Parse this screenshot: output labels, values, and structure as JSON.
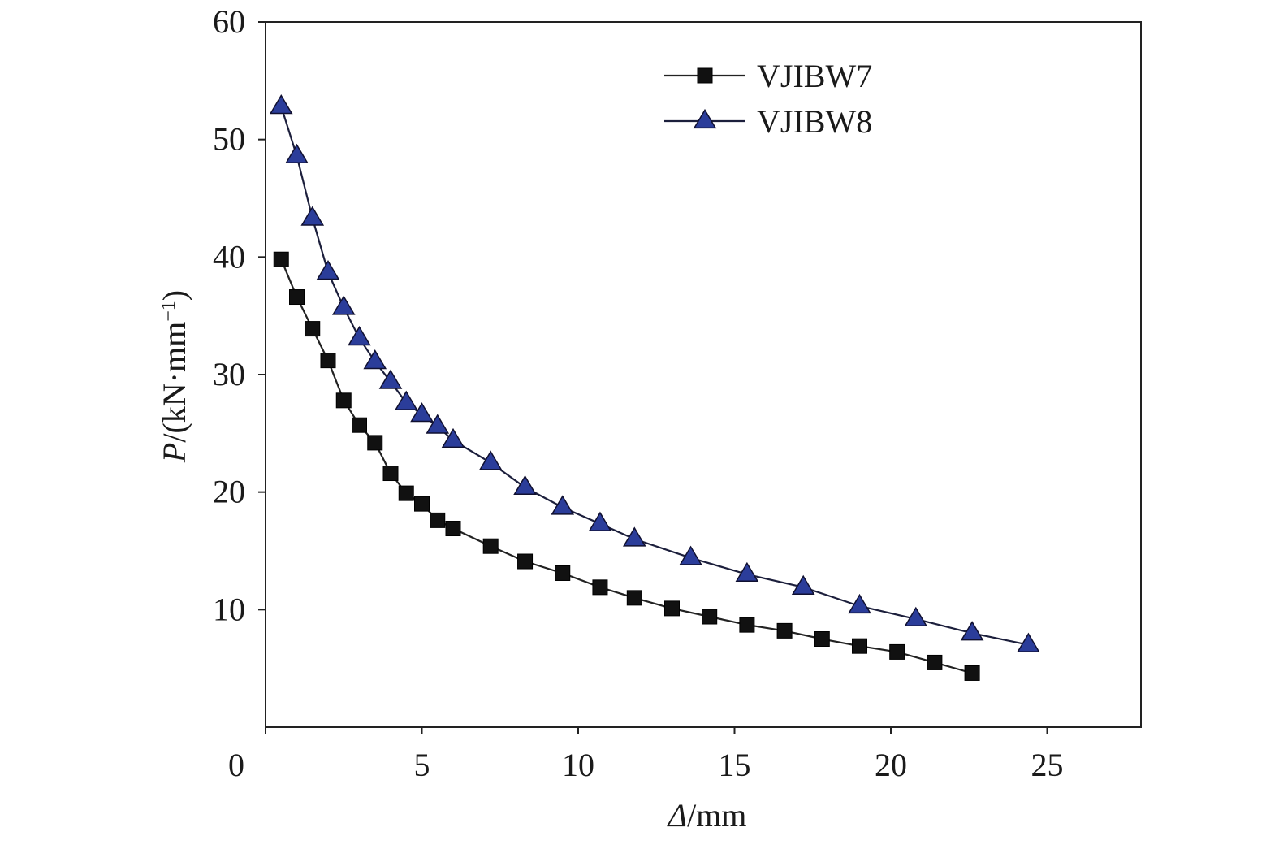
{
  "chart_data": {
    "type": "line",
    "xlabel_symbol": "Δ",
    "xlabel_unit": "/mm",
    "ylabel_symbol": "P",
    "ylabel_unit": "/(kN·mm",
    "ylabel_exponent": "−1",
    "ylabel_close": ")",
    "xlim": [
      0,
      28
    ],
    "ylim": [
      0,
      60
    ],
    "x_ticks": [
      0,
      5,
      10,
      15,
      20,
      25
    ],
    "y_ticks": [
      10,
      20,
      30,
      40,
      50,
      60
    ],
    "legend_position": "top-right",
    "series": [
      {
        "name": "VJIBW7",
        "marker": "square",
        "color": "#111111",
        "line_color": "#222222",
        "points": [
          [
            0.5,
            39.8
          ],
          [
            1.0,
            36.6
          ],
          [
            1.5,
            33.9
          ],
          [
            2.0,
            31.2
          ],
          [
            2.5,
            27.8
          ],
          [
            3.0,
            25.7
          ],
          [
            3.5,
            24.2
          ],
          [
            4.0,
            21.6
          ],
          [
            4.5,
            19.9
          ],
          [
            5.0,
            19.0
          ],
          [
            5.5,
            17.6
          ],
          [
            6.0,
            16.9
          ],
          [
            7.2,
            15.4
          ],
          [
            8.3,
            14.1
          ],
          [
            9.5,
            13.1
          ],
          [
            10.7,
            11.9
          ],
          [
            11.8,
            11.0
          ],
          [
            13.0,
            10.1
          ],
          [
            14.2,
            9.4
          ],
          [
            15.4,
            8.7
          ],
          [
            16.6,
            8.2
          ],
          [
            17.8,
            7.5
          ],
          [
            19.0,
            6.9
          ],
          [
            20.2,
            6.4
          ],
          [
            21.4,
            5.5
          ],
          [
            22.6,
            4.6
          ]
        ]
      },
      {
        "name": "VJIBW8",
        "marker": "triangle",
        "color": "#2b3d9a",
        "line_color": "#1c1f3c",
        "points": [
          [
            0.5,
            52.8
          ],
          [
            1.0,
            48.6
          ],
          [
            1.5,
            43.3
          ],
          [
            2.0,
            38.7
          ],
          [
            2.5,
            35.7
          ],
          [
            3.0,
            33.1
          ],
          [
            3.5,
            31.1
          ],
          [
            4.0,
            29.4
          ],
          [
            4.5,
            27.6
          ],
          [
            5.0,
            26.6
          ],
          [
            5.5,
            25.6
          ],
          [
            6.0,
            24.4
          ],
          [
            7.2,
            22.5
          ],
          [
            8.3,
            20.4
          ],
          [
            9.5,
            18.7
          ],
          [
            10.7,
            17.3
          ],
          [
            11.8,
            16.0
          ],
          [
            13.6,
            14.4
          ],
          [
            15.4,
            13.0
          ],
          [
            17.2,
            11.9
          ],
          [
            19.0,
            10.3
          ],
          [
            20.8,
            9.2
          ],
          [
            22.6,
            8.0
          ],
          [
            24.4,
            7.0
          ]
        ]
      }
    ]
  }
}
